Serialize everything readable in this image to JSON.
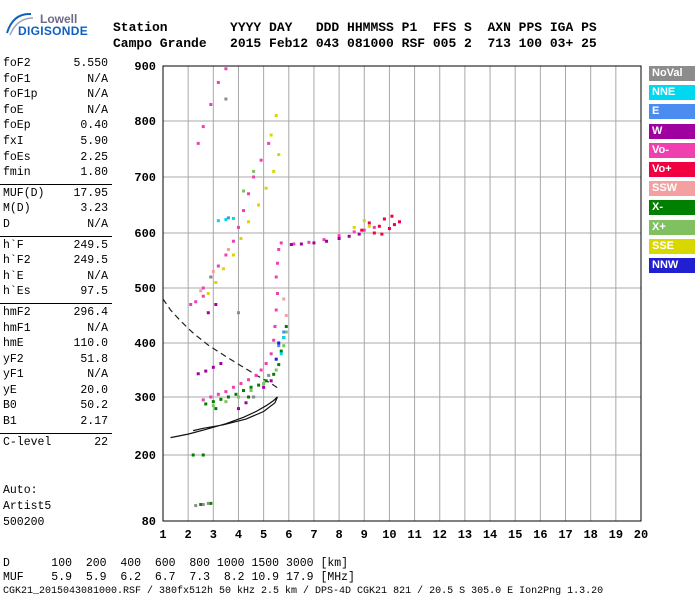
{
  "logo": {
    "line1": "Lowell",
    "line2": "DIGISONDE"
  },
  "header": {
    "labels": "Station        YYYY DAY   DDD HHMMSS P1  FFS S  AXN PPS IGA PS",
    "values": "Campo Grande   2015 Feb12 043 081000 RSF 005 2  713 100 03+ 25"
  },
  "side_params": [
    {
      "group": [
        {
          "label": "foF2",
          "value": "5.550"
        },
        {
          "label": "foF1",
          "value": "N/A"
        },
        {
          "label": "foF1p",
          "value": "N/A"
        },
        {
          "label": "foE",
          "value": "N/A"
        },
        {
          "label": "foEp",
          "value": "0.40"
        },
        {
          "label": "fxI",
          "value": "5.90"
        },
        {
          "label": "foEs",
          "value": "2.25"
        },
        {
          "label": "fmin",
          "value": "1.80"
        }
      ]
    },
    {
      "group": [
        {
          "label": "MUF(D)",
          "value": "17.95"
        },
        {
          "label": "M(D)",
          "value": "3.23"
        },
        {
          "label": "D",
          "value": "N/A"
        }
      ]
    },
    {
      "group": [
        {
          "label": "h`F",
          "value": "249.5"
        },
        {
          "label": "h`F2",
          "value": "249.5"
        },
        {
          "label": "h`E",
          "value": "N/A"
        },
        {
          "label": "h`Es",
          "value": "97.5"
        }
      ]
    },
    {
      "group": [
        {
          "label": "hmF2",
          "value": "296.4"
        },
        {
          "label": "hmF1",
          "value": "N/A"
        },
        {
          "label": "hmE",
          "value": "110.0"
        },
        {
          "label": "yF2",
          "value": "51.8"
        },
        {
          "label": "yF1",
          "value": "N/A"
        },
        {
          "label": "yE",
          "value": "20.0"
        },
        {
          "label": "B0",
          "value": "50.2"
        },
        {
          "label": "B1",
          "value": "2.17"
        }
      ]
    },
    {
      "group": [
        {
          "label": "C-level",
          "value": "22"
        }
      ]
    }
  ],
  "auto": {
    "line1": "Auto:",
    "line2": "Artist5",
    "line3": "500200"
  },
  "legend": [
    {
      "label": "NoVal",
      "color": "#8c8c8c"
    },
    {
      "label": "NNE",
      "color": "#00d8f0"
    },
    {
      "label": "E",
      "color": "#4a8cf0"
    },
    {
      "label": "W",
      "color": "#a000a0"
    },
    {
      "label": "Vo-",
      "color": "#f040b0"
    },
    {
      "label": "Vo+",
      "color": "#f00040"
    },
    {
      "label": "SSW",
      "color": "#f4a0a0"
    },
    {
      "label": "X-",
      "color": "#008000"
    },
    {
      "label": "X+",
      "color": "#80c060"
    },
    {
      "label": "SSE",
      "color": "#d8d800"
    },
    {
      "label": "NNW",
      "color": "#2020d0"
    }
  ],
  "footer": {
    "d_row": "D      100  200  400  600  800 1000 1500 3000 [km]",
    "muf_row": "MUF    5.9  5.9  6.2  6.7  7.3  8.2 10.9 17.9 [MHz]",
    "file_row": "CGK21_2015043081000.RSF / 380fx512h 50 kHz 2.5 km / DPS-4D CGK21 821 / 20.5 S 305.0 E Ion2Png 1.3.20"
  },
  "chart_data": {
    "type": "scatter",
    "xlabel": "",
    "ylabel": "",
    "xlim": [
      1,
      20
    ],
    "ylim": [
      80,
      900
    ],
    "x_ticks": [
      1,
      2,
      3,
      4,
      5,
      6,
      7,
      8,
      9,
      10,
      11,
      12,
      13,
      14,
      15,
      16,
      17,
      18,
      19,
      20
    ],
    "y_ticks": [
      80,
      200,
      300,
      400,
      500,
      600,
      700,
      800,
      900
    ],
    "grid": true,
    "series": [
      {
        "name": "Vo-",
        "color": "#f040b0",
        "points": [
          [
            2.6,
            295
          ],
          [
            2.9,
            300
          ],
          [
            3.2,
            305
          ],
          [
            3.5,
            310
          ],
          [
            3.8,
            318
          ],
          [
            4.1,
            325
          ],
          [
            4.4,
            332
          ],
          [
            4.7,
            340
          ],
          [
            4.9,
            350
          ],
          [
            5.1,
            362
          ],
          [
            5.3,
            380
          ],
          [
            5.4,
            405
          ],
          [
            5.45,
            430
          ],
          [
            5.5,
            460
          ],
          [
            5.55,
            490
          ],
          [
            5.5,
            520
          ],
          [
            5.55,
            545
          ],
          [
            5.6,
            570
          ],
          [
            5.7,
            582
          ],
          [
            6.2,
            580
          ],
          [
            6.8,
            583
          ],
          [
            7.4,
            588
          ],
          [
            8.0,
            595
          ],
          [
            8.6,
            602
          ],
          [
            9.0,
            605
          ],
          [
            9.4,
            610
          ],
          [
            2.6,
            500
          ],
          [
            2.9,
            520
          ],
          [
            3.2,
            540
          ],
          [
            3.5,
            560
          ],
          [
            3.8,
            585
          ],
          [
            4.0,
            610
          ],
          [
            4.2,
            640
          ],
          [
            4.4,
            670
          ],
          [
            4.6,
            700
          ],
          [
            4.9,
            730
          ],
          [
            5.2,
            760
          ],
          [
            2.4,
            760
          ],
          [
            2.6,
            790
          ],
          [
            2.9,
            830
          ],
          [
            3.2,
            870
          ],
          [
            3.5,
            895
          ],
          [
            2.1,
            470
          ],
          [
            2.3,
            475
          ],
          [
            2.6,
            485
          ]
        ]
      },
      {
        "name": "Vo+",
        "color": "#f00040",
        "points": [
          [
            8.9,
            605
          ],
          [
            9.2,
            618
          ],
          [
            9.4,
            600
          ],
          [
            9.6,
            612
          ],
          [
            9.8,
            625
          ],
          [
            10.0,
            608
          ],
          [
            10.2,
            615
          ],
          [
            10.4,
            620
          ],
          [
            9.7,
            598
          ],
          [
            10.1,
            630
          ]
        ]
      },
      {
        "name": "W",
        "color": "#a000a0",
        "points": [
          [
            6.1,
            579
          ],
          [
            6.5,
            580
          ],
          [
            7.0,
            582
          ],
          [
            7.5,
            585
          ],
          [
            8.0,
            590
          ],
          [
            8.4,
            594
          ],
          [
            8.8,
            598
          ],
          [
            2.4,
            343
          ],
          [
            2.7,
            348
          ],
          [
            3.0,
            355
          ],
          [
            3.3,
            362
          ],
          [
            2.8,
            455
          ],
          [
            3.1,
            470
          ],
          [
            4.0,
            280
          ],
          [
            4.3,
            290
          ],
          [
            4.6,
            300
          ],
          [
            5.0,
            318
          ],
          [
            5.3,
            330
          ]
        ]
      },
      {
        "name": "X-",
        "color": "#008000",
        "points": [
          [
            2.7,
            288
          ],
          [
            3.0,
            292
          ],
          [
            3.3,
            296
          ],
          [
            3.6,
            300
          ],
          [
            3.9,
            305
          ],
          [
            4.2,
            312
          ],
          [
            4.5,
            318
          ],
          [
            4.8,
            322
          ],
          [
            5.1,
            330
          ],
          [
            5.4,
            342
          ],
          [
            5.6,
            360
          ],
          [
            5.7,
            385
          ],
          [
            5.8,
            410
          ],
          [
            5.9,
            430
          ],
          [
            2.2,
            200
          ],
          [
            2.6,
            200
          ],
          [
            2.5,
            110
          ],
          [
            2.9,
            112
          ],
          [
            3.1,
            280
          ],
          [
            4.4,
            300
          ]
        ]
      },
      {
        "name": "X+",
        "color": "#80c060",
        "points": [
          [
            3.0,
            285
          ],
          [
            3.5,
            292
          ],
          [
            4.0,
            300
          ],
          [
            4.5,
            312
          ],
          [
            5.0,
            325
          ],
          [
            5.5,
            350
          ],
          [
            5.8,
            395
          ],
          [
            5.9,
            420
          ],
          [
            4.2,
            675
          ],
          [
            4.6,
            710
          ]
        ]
      },
      {
        "name": "SSE",
        "color": "#d8d800",
        "points": [
          [
            2.8,
            490
          ],
          [
            3.1,
            510
          ],
          [
            3.4,
            535
          ],
          [
            3.8,
            560
          ],
          [
            4.1,
            590
          ],
          [
            4.4,
            620
          ],
          [
            4.8,
            650
          ],
          [
            5.1,
            680
          ],
          [
            5.4,
            710
          ],
          [
            5.6,
            740
          ],
          [
            8.6,
            610
          ],
          [
            9.0,
            622
          ],
          [
            9.2,
            612
          ],
          [
            5.3,
            775
          ],
          [
            5.5,
            810
          ]
        ]
      },
      {
        "name": "SSW",
        "color": "#f4a0a0",
        "points": [
          [
            2.5,
            495
          ],
          [
            3.0,
            530
          ],
          [
            3.6,
            570
          ],
          [
            5.9,
            450
          ],
          [
            5.8,
            480
          ]
        ]
      },
      {
        "name": "NNE",
        "color": "#00d8f0",
        "points": [
          [
            3.2,
            622
          ],
          [
            3.5,
            624
          ],
          [
            3.8,
            626
          ],
          [
            5.8,
            410
          ],
          [
            5.7,
            380
          ]
        ]
      },
      {
        "name": "E",
        "color": "#4a8cf0",
        "points": [
          [
            5.6,
            395
          ],
          [
            5.8,
            420
          ],
          [
            3.6,
            627
          ]
        ]
      },
      {
        "name": "NNW",
        "color": "#2020d0",
        "points": [
          [
            5.6,
            400
          ],
          [
            5.5,
            370
          ]
        ]
      },
      {
        "name": "NoVal",
        "color": "#8c8c8c",
        "points": [
          [
            2.3,
            108
          ],
          [
            2.6,
            110
          ],
          [
            2.8,
            112
          ],
          [
            4.6,
            300
          ],
          [
            5.2,
            340
          ],
          [
            4.0,
            455
          ],
          [
            3.5,
            840
          ],
          [
            2.9,
            520
          ]
        ]
      }
    ],
    "profile_curve": [
      [
        1.3,
        230
      ],
      [
        2.0,
        236
      ],
      [
        2.7,
        244
      ],
      [
        3.5,
        254
      ],
      [
        4.2,
        265
      ],
      [
        4.7,
        275
      ],
      [
        5.1,
        285
      ],
      [
        5.4,
        294
      ],
      [
        5.55,
        300
      ],
      [
        5.45,
        290
      ],
      [
        5.0,
        275
      ],
      [
        4.3,
        262
      ],
      [
        3.4,
        252
      ],
      [
        2.6,
        246
      ],
      [
        2.2,
        242
      ]
    ],
    "dashed_curve": [
      [
        1.0,
        480
      ],
      [
        1.3,
        460
      ],
      [
        1.7,
        440
      ],
      [
        2.2,
        418
      ],
      [
        2.8,
        396
      ],
      [
        3.5,
        375
      ],
      [
        4.2,
        355
      ],
      [
        4.8,
        338
      ],
      [
        5.3,
        325
      ],
      [
        5.55,
        317
      ]
    ]
  }
}
